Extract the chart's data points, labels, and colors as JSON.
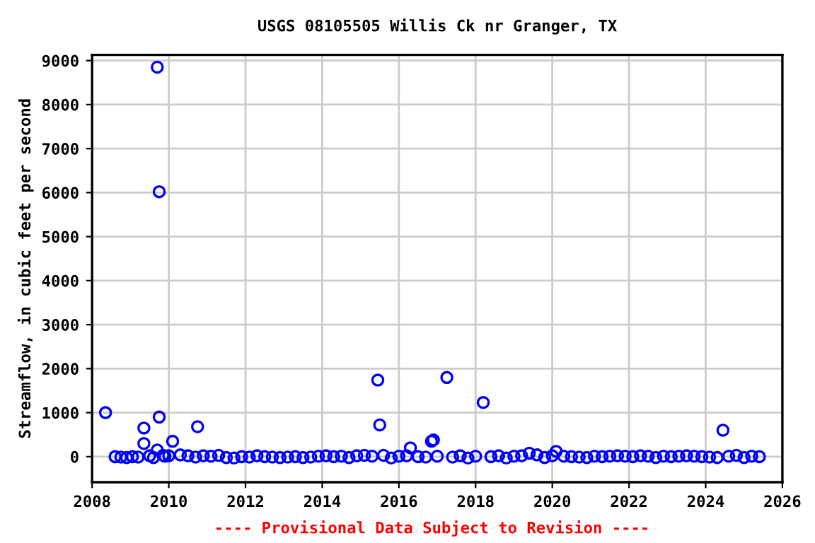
{
  "chart_data": {
    "type": "scatter",
    "title": "USGS 08105505 Willis Ck nr Granger, TX",
    "ylabel": "Streamflow, in cubic feet per second",
    "annotations": [
      "---- Provisional Data Subject to Revision ----"
    ],
    "x": [
      2008.35,
      2009.35,
      2009.35,
      2009.7,
      2009.75,
      2009.75,
      2009.7,
      2010.1,
      2010.75,
      2015.45,
      2015.5,
      2016.3,
      2016.85,
      2016.9,
      2017.25,
      2018.2,
      2019.4,
      2020.1,
      2024.45,
      2008.6,
      2008.75,
      2008.9,
      2009.05,
      2009.2,
      2009.5,
      2009.6,
      2009.85,
      2009.9,
      2010.0,
      2010.3,
      2010.5,
      2010.7,
      2010.9,
      2011.1,
      2011.3,
      2011.5,
      2011.7,
      2011.9,
      2012.1,
      2012.3,
      2012.5,
      2012.7,
      2012.9,
      2013.1,
      2013.3,
      2013.5,
      2013.7,
      2013.9,
      2014.1,
      2014.3,
      2014.5,
      2014.7,
      2014.9,
      2015.1,
      2015.3,
      2015.6,
      2015.8,
      2016.0,
      2016.2,
      2016.5,
      2016.7,
      2017.0,
      2017.4,
      2017.6,
      2017.8,
      2018.0,
      2018.4,
      2018.6,
      2018.8,
      2019.0,
      2019.2,
      2019.6,
      2019.8,
      2020.0,
      2020.3,
      2020.5,
      2020.7,
      2020.9,
      2021.1,
      2021.3,
      2021.5,
      2021.7,
      2021.9,
      2022.1,
      2022.3,
      2022.5,
      2022.7,
      2022.9,
      2023.1,
      2023.3,
      2023.5,
      2023.7,
      2023.9,
      2024.1,
      2024.3,
      2024.6,
      2024.8,
      2025.0,
      2025.2,
      2025.4
    ],
    "values": [
      1000,
      650,
      300,
      8850,
      6020,
      900,
      150,
      350,
      680,
      1740,
      720,
      200,
      350,
      380,
      1800,
      1230,
      80,
      120,
      600,
      0,
      -10,
      -20,
      0,
      -10,
      20,
      -20,
      30,
      10,
      20,
      40,
      20,
      -10,
      20,
      10,
      30,
      -20,
      -30,
      0,
      -10,
      20,
      0,
      -10,
      -20,
      -10,
      0,
      -20,
      -10,
      10,
      20,
      0,
      10,
      -20,
      20,
      30,
      10,
      30,
      -30,
      10,
      20,
      0,
      -10,
      10,
      -10,
      20,
      -30,
      10,
      0,
      20,
      -30,
      10,
      20,
      40,
      -20,
      20,
      10,
      0,
      -10,
      -20,
      10,
      0,
      10,
      20,
      10,
      0,
      20,
      10,
      -20,
      10,
      0,
      10,
      20,
      10,
      0,
      -10,
      -20,
      10,
      30,
      -20,
      10,
      0
    ],
    "color": "#0000ff",
    "marker": "circle",
    "xlim": [
      2008,
      2026
    ],
    "xticks": [
      2008,
      2010,
      2012,
      2014,
      2016,
      2018,
      2020,
      2022,
      2024,
      2026
    ],
    "ylim": [
      -580,
      9130
    ],
    "yticks": [
      0,
      1000,
      2000,
      3000,
      4000,
      5000,
      6000,
      7000,
      8000,
      9000
    ],
    "grid": true
  }
}
